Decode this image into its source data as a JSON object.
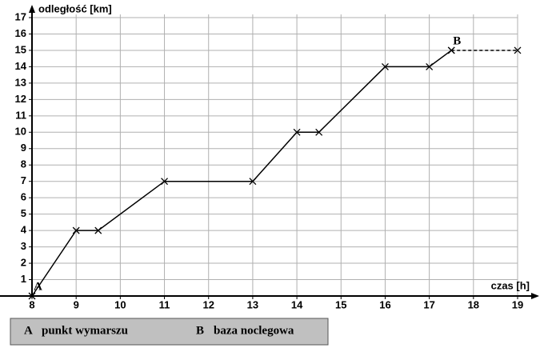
{
  "chart_data": {
    "type": "line",
    "y_axis_label": "odległość [km]",
    "x_axis_label": "czas [h]",
    "x": [
      8,
      9,
      9.5,
      11,
      13,
      14,
      14.5,
      16,
      17,
      17.5
    ],
    "values": [
      0,
      4,
      4,
      7,
      7,
      10,
      10,
      14,
      14,
      15
    ],
    "dashed_segment": {
      "x": [
        17.5,
        19
      ],
      "values": [
        15,
        15
      ]
    },
    "color": "#000000",
    "xlim": [
      8,
      19
    ],
    "xticks": [
      8,
      9,
      10,
      11,
      12,
      13,
      14,
      15,
      16,
      17,
      18,
      19
    ],
    "ylim": [
      0,
      17
    ],
    "yticks": [
      1,
      2,
      3,
      4,
      5,
      6,
      7,
      8,
      9,
      10,
      11,
      12,
      13,
      14,
      15,
      16,
      17
    ],
    "grid": true,
    "annotations": [
      {
        "text": "A",
        "x": 8,
        "y": 0
      },
      {
        "text": "B",
        "x": 17.5,
        "y": 15
      }
    ],
    "legend": [
      {
        "key": "A",
        "label": "punkt wymarszu"
      },
      {
        "key": "B",
        "label": "baza noclegowa"
      }
    ]
  }
}
